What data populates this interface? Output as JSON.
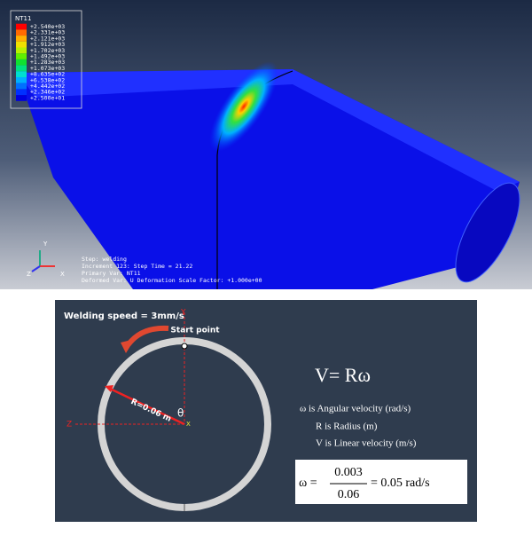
{
  "simulation": {
    "legend": {
      "title": "NT11",
      "labels": [
        "+2.540e+03",
        "+2.331e+03",
        "+2.121e+03",
        "+1.912e+03",
        "+1.702e+03",
        "+1.492e+03",
        "+1.283e+03",
        "+1.073e+03",
        "+8.635e+02",
        "+6.538e+02",
        "+4.442e+02",
        "+2.346e+02",
        "+2.500e+01"
      ]
    },
    "triad": {
      "y": "Y",
      "z": "Z",
      "x": "X"
    },
    "info": [
      "Step: welding",
      "Increment    123: Step Time =    21.22",
      "Primary Var: NT11",
      "Deformed Var: U   Deformation Scale Factor: +1.000e+00"
    ]
  },
  "diagram": {
    "speed": "Welding speed = 3mm/s",
    "start": "Start point",
    "radius": "R=0.06 m",
    "angle": "θ",
    "axes": {
      "y": "Y",
      "z": "Z",
      "x": "X"
    },
    "formula": "V= Rω",
    "definitions": [
      "ω is Angular velocity (rad/s)",
      "R is Radius (m)",
      "V is Linear velocity (m/s)"
    ],
    "calc": {
      "lhs": "ω =",
      "numerator": "0.003",
      "denominator": "0.06",
      "rhs": "= 0.05 rad/s"
    }
  }
}
